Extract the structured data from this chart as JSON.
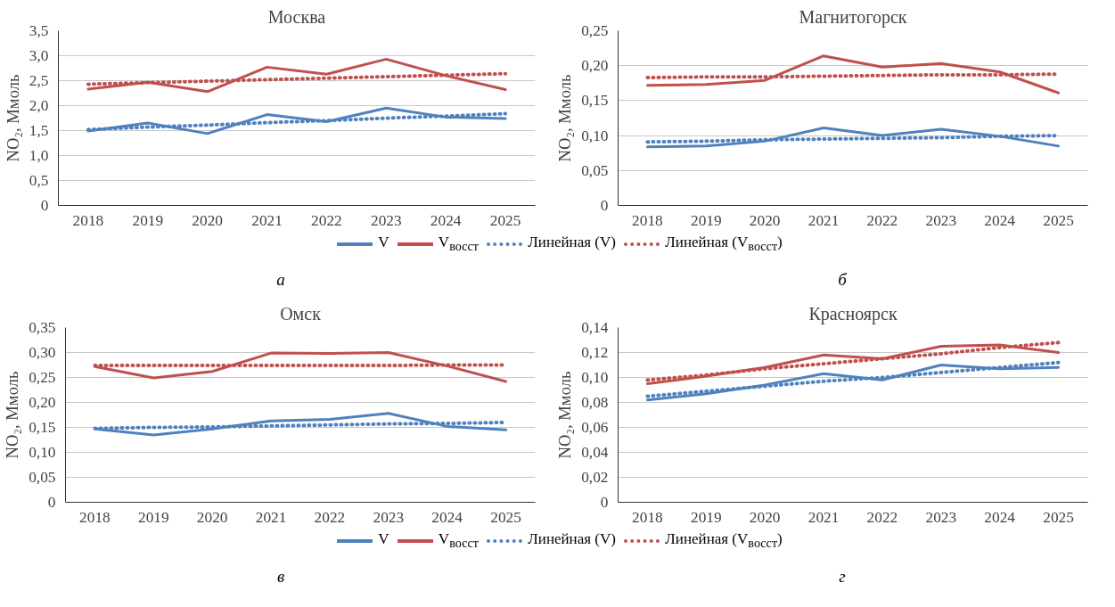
{
  "chart_data": [
    {
      "type": "line",
      "title": "Москва",
      "ylabel": "NO₂, Ммоль",
      "categories": [
        "2018",
        "2019",
        "2020",
        "2021",
        "2022",
        "2023",
        "2024",
        "2025"
      ],
      "ylim": [
        0,
        3.5
      ],
      "yticks": [
        0,
        {
          "value": 0.5,
          "label": "0,5"
        },
        {
          "value": 1,
          "label": "1,0"
        },
        {
          "value": 1.5,
          "label": "1,5"
        },
        {
          "value": 2,
          "label": "2,0"
        },
        {
          "value": 2.5,
          "label": "2,5"
        },
        {
          "value": 3,
          "label": "3,0"
        },
        {
          "value": 3.5,
          "label": "3,5"
        }
      ],
      "grid": "y",
      "legend": "bottom",
      "annotations": [
        "а"
      ],
      "series": [
        {
          "name": "V",
          "color": "#4f81bd",
          "line_style": "solid",
          "values": [
            1.49,
            1.65,
            1.44,
            1.82,
            1.68,
            1.95,
            1.77,
            1.74
          ]
        },
        {
          "name": "V$_{восст}$",
          "color": "#c0504d",
          "line_style": "solid",
          "values": [
            2.33,
            2.47,
            2.28,
            2.77,
            2.63,
            2.93,
            2.6,
            2.32
          ]
        },
        {
          "name": "Линейная (V)",
          "color": "#4f81bd",
          "line_style": "dotted",
          "values": [
            1.52,
            1.57,
            1.61,
            1.66,
            1.7,
            1.75,
            1.79,
            1.84
          ]
        },
        {
          "name": "Линейная (V$_{восст}$)",
          "color": "#c0504d",
          "line_style": "dotted",
          "values": [
            2.43,
            2.46,
            2.49,
            2.52,
            2.55,
            2.58,
            2.61,
            2.64
          ]
        }
      ]
    },
    {
      "type": "line",
      "title": "Магнитогорск",
      "ylabel": "NO₂, Ммоль",
      "categories": [
        "2018",
        "2019",
        "2020",
        "2021",
        "2022",
        "2023",
        "2024",
        "2025"
      ],
      "ylim": [
        0,
        0.25
      ],
      "yticks": [
        0,
        {
          "value": 0.05,
          "label": "0,05"
        },
        {
          "value": 0.1,
          "label": "0,10"
        },
        {
          "value": 0.15,
          "label": "0,15"
        },
        {
          "value": 0.2,
          "label": "0,20"
        },
        {
          "value": 0.25,
          "label": "0,25"
        }
      ],
      "grid": "y",
      "annotations": [
        "б"
      ],
      "series": [
        {
          "color": "#4f81bd",
          "line_style": "solid",
          "values": [
            0.084,
            0.085,
            0.092,
            0.111,
            0.1,
            0.109,
            0.099,
            0.085
          ]
        },
        {
          "color": "#c0504d",
          "line_style": "solid",
          "values": [
            0.172,
            0.173,
            0.179,
            0.214,
            0.198,
            0.203,
            0.191,
            0.161
          ]
        },
        {
          "color": "#4f81bd",
          "line_style": "dotted",
          "values": [
            0.091,
            0.092,
            0.094,
            0.095,
            0.096,
            0.097,
            0.099,
            0.1
          ]
        },
        {
          "color": "#c0504d",
          "line_style": "dotted",
          "values": [
            0.183,
            0.184,
            0.184,
            0.185,
            0.186,
            0.187,
            0.187,
            0.188
          ]
        }
      ]
    },
    {
      "type": "line",
      "title": "Омск",
      "ylabel": "NO₂, Ммоль",
      "categories": [
        "2018",
        "2019",
        "2020",
        "2021",
        "2022",
        "2023",
        "2024",
        "2025"
      ],
      "ylim": [
        0,
        0.35
      ],
      "yticks": [
        0,
        {
          "value": 0.05,
          "label": "0,05"
        },
        {
          "value": 0.1,
          "label": "0,10"
        },
        {
          "value": 0.15,
          "label": "0,15"
        },
        {
          "value": 0.2,
          "label": "0,20"
        },
        {
          "value": 0.25,
          "label": "0,25"
        },
        {
          "value": 0.3,
          "label": "0,30"
        },
        {
          "value": 0.35,
          "label": "0,35"
        }
      ],
      "grid": "y",
      "legend": "bottom",
      "annotations": [
        "в"
      ],
      "series": [
        {
          "name": "V",
          "color": "#4f81bd",
          "line_style": "solid",
          "values": [
            0.147,
            0.135,
            0.147,
            0.163,
            0.166,
            0.178,
            0.152,
            0.145
          ]
        },
        {
          "name": "V$_{восст}$",
          "color": "#c0504d",
          "line_style": "solid",
          "values": [
            0.272,
            0.249,
            0.262,
            0.299,
            0.298,
            0.3,
            0.273,
            0.242
          ]
        },
        {
          "name": "Линейная (V)",
          "color": "#4f81bd",
          "line_style": "dotted",
          "values": [
            0.148,
            0.15,
            0.151,
            0.153,
            0.155,
            0.157,
            0.158,
            0.16
          ]
        },
        {
          "name": "Линейная (V$_{восст}$)",
          "color": "#c0504d",
          "line_style": "dotted",
          "values": [
            0.274,
            0.274,
            0.274,
            0.274,
            0.274,
            0.274,
            0.275,
            0.275
          ]
        }
      ]
    },
    {
      "type": "line",
      "title": "Красноярск",
      "ylabel": "NO₂, Ммоль",
      "categories": [
        "2018",
        "2019",
        "2020",
        "2021",
        "2022",
        "2023",
        "2024",
        "2025"
      ],
      "ylim": [
        0,
        0.14
      ],
      "yticks": [
        0,
        {
          "value": 0.02,
          "label": "0,02"
        },
        {
          "value": 0.04,
          "label": "0,04"
        },
        {
          "value": 0.06,
          "label": "0,06"
        },
        {
          "value": 0.08,
          "label": "0,08"
        },
        {
          "value": 0.1,
          "label": "0,10"
        },
        {
          "value": 0.12,
          "label": "0,12"
        },
        {
          "value": 0.14,
          "label": "0,14"
        }
      ],
      "grid": "y",
      "annotations": [
        "г"
      ],
      "series": [
        {
          "color": "#4f81bd",
          "line_style": "solid",
          "values": [
            0.082,
            0.087,
            0.094,
            0.103,
            0.098,
            0.11,
            0.107,
            0.108
          ]
        },
        {
          "color": "#c0504d",
          "line_style": "solid",
          "values": [
            0.095,
            0.101,
            0.108,
            0.118,
            0.115,
            0.125,
            0.126,
            0.12
          ]
        },
        {
          "color": "#4f81bd",
          "line_style": "dotted",
          "values": [
            0.085,
            0.089,
            0.093,
            0.097,
            0.1,
            0.104,
            0.108,
            0.112
          ]
        },
        {
          "color": "#c0504d",
          "line_style": "dotted",
          "values": [
            0.098,
            0.102,
            0.107,
            0.111,
            0.115,
            0.119,
            0.124,
            0.128
          ]
        }
      ]
    }
  ]
}
